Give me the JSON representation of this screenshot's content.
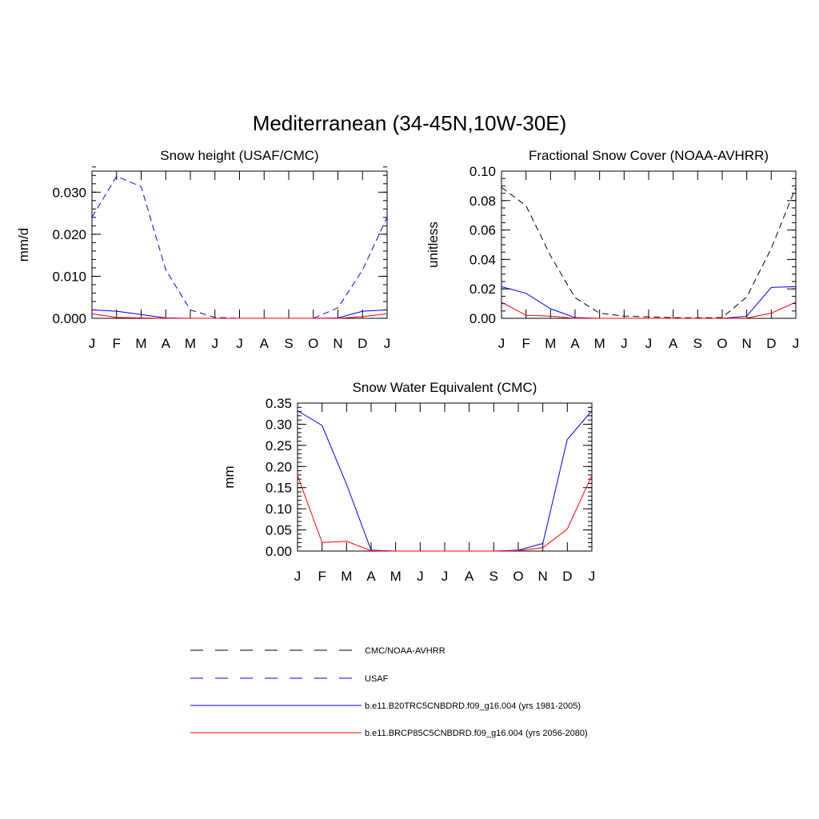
{
  "figure": {
    "title": "Mediterranean (34-45N,10W-30E)"
  },
  "months": [
    "J",
    "F",
    "M",
    "A",
    "M",
    "J",
    "J",
    "A",
    "S",
    "O",
    "N",
    "D",
    "J"
  ],
  "legend": [
    {
      "label": "CMC/NOAA-AVHRR",
      "color": "#000000",
      "dash": true
    },
    {
      "label": "USAF",
      "color": "#0000ff",
      "dash": true
    },
    {
      "label": "b.e11.B20TRC5CNBDRD.f09_g16.004 (yrs 1981-2005)",
      "color": "#0000ff",
      "dash": false
    },
    {
      "label": "b.e11.BRCP85C5CNBDRD.f09_g16.004 (yrs 2056-2080)",
      "color": "#ff0000",
      "dash": false
    }
  ],
  "chart_data": [
    {
      "type": "line",
      "title": "Snow height (USAF/CMC)",
      "ylabel": "mm/d",
      "categories": [
        "J",
        "F",
        "M",
        "A",
        "M",
        "J",
        "J",
        "A",
        "S",
        "O",
        "N",
        "D",
        "J"
      ],
      "ylim": [
        0,
        0.035
      ],
      "yticks": [
        0,
        0.01,
        0.02,
        0.03
      ],
      "ytick_labels": [
        "0.000",
        "0.010",
        "0.020",
        "0.030"
      ],
      "yminor_step": 0.002,
      "series": [
        {
          "name": "USAF",
          "color": "#0000ff",
          "dash": true,
          "values": [
            0.024,
            0.0338,
            0.0313,
            0.0115,
            0.002,
            0.0002,
            0,
            0,
            0,
            0,
            0.0025,
            0.0115,
            0.024
          ]
        },
        {
          "name": "b.e11.B20TRC5CNBDRD.f09_g16.004 (yrs 1981-2005)",
          "color": "#0000ff",
          "dash": false,
          "values": [
            0.002,
            0.0017,
            0.0009,
            0.0001,
            0,
            0,
            0,
            0,
            0,
            0,
            0.0001,
            0.0017,
            0.002
          ]
        },
        {
          "name": "b.e11.BRCP85C5CNBDRD.f09_g16.004 (yrs 2056-2080)",
          "color": "#ff0000",
          "dash": false,
          "values": [
            0.0011,
            0.0002,
            0.0001,
            0,
            0,
            0,
            0,
            0,
            0,
            0,
            0,
            0.0004,
            0.0011
          ]
        }
      ]
    },
    {
      "type": "line",
      "title": "Fractional Snow Cover (NOAA-AVHRR)",
      "ylabel": "unitless",
      "categories": [
        "J",
        "F",
        "M",
        "A",
        "M",
        "J",
        "J",
        "A",
        "S",
        "O",
        "N",
        "D",
        "J"
      ],
      "ylim": [
        0,
        0.1
      ],
      "yticks": [
        0,
        0.02,
        0.04,
        0.06,
        0.08,
        0.1
      ],
      "ytick_labels": [
        "0.00",
        "0.02",
        "0.04",
        "0.06",
        "0.08",
        "0.10"
      ],
      "yminor_step": 0.005,
      "series": [
        {
          "name": "CMC/NOAA-AVHRR",
          "color": "#000000",
          "dash": true,
          "values": [
            0.089,
            0.0765,
            0.0425,
            0.014,
            0.0035,
            0.0015,
            0.001,
            0.0005,
            0.0003,
            0.0005,
            0.0145,
            0.0475,
            0.089
          ]
        },
        {
          "name": "b.e11.B20TRC5CNBDRD.f09_g16.004 (yrs 1981-2005)",
          "color": "#0000ff",
          "dash": false,
          "values": [
            0.0215,
            0.017,
            0.0065,
            0.0005,
            0,
            0,
            0,
            0,
            0,
            0,
            0.0015,
            0.021,
            0.0215
          ]
        },
        {
          "name": "b.e11.BRCP85C5CNBDRD.f09_g16.004 (yrs 2056-2080)",
          "color": "#ff0000",
          "dash": false,
          "values": [
            0.011,
            0.002,
            0.0015,
            0,
            0,
            0,
            0,
            0,
            0,
            0,
            0.0002,
            0.0035,
            0.011
          ]
        }
      ]
    },
    {
      "type": "line",
      "title": "Snow Water Equivalent (CMC)",
      "ylabel": "mm",
      "categories": [
        "J",
        "F",
        "M",
        "A",
        "M",
        "J",
        "J",
        "A",
        "S",
        "O",
        "N",
        "D",
        "J"
      ],
      "ylim": [
        0,
        0.35
      ],
      "yticks": [
        0,
        0.05,
        0.1,
        0.15,
        0.2,
        0.25,
        0.3,
        0.35
      ],
      "ytick_labels": [
        "0.00",
        "0.05",
        "0.10",
        "0.15",
        "0.20",
        "0.25",
        "0.30",
        "0.35"
      ],
      "yminor_step": 0.01,
      "series": [
        {
          "name": "CMC/NOAA-AVHRR",
          "color": "#000000",
          "dash": true,
          "values": [
            0,
            0,
            0,
            0,
            0,
            0,
            0,
            0,
            0,
            0,
            0,
            0,
            0
          ]
        },
        {
          "name": "b.e11.B20TRC5CNBDRD.f09_g16.004 (yrs 1981-2005)",
          "color": "#0000ff",
          "dash": false,
          "values": [
            0.332,
            0.297,
            0.158,
            0.002,
            0,
            0,
            0,
            0,
            0,
            0.002,
            0.018,
            0.264,
            0.332
          ]
        },
        {
          "name": "b.e11.BRCP85C5CNBDRD.f09_g16.004 (yrs 2056-2080)",
          "color": "#ff0000",
          "dash": false,
          "values": [
            0.179,
            0.02,
            0.023,
            0.001,
            0,
            0,
            0,
            0,
            0,
            0.001,
            0.008,
            0.052,
            0.179
          ]
        }
      ]
    }
  ]
}
